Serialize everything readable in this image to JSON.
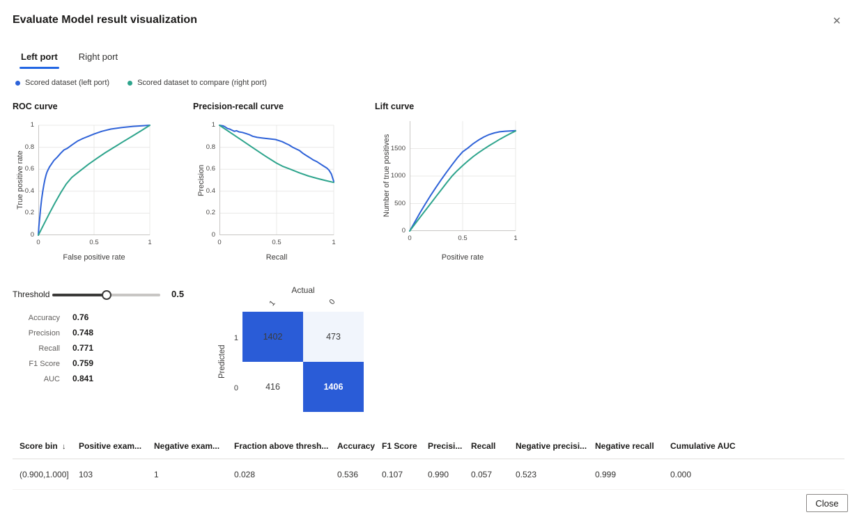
{
  "dialog": {
    "title": "Evaluate Model result visualization",
    "close_icon": "✕"
  },
  "tabs": [
    {
      "label": "Left port",
      "active": true
    },
    {
      "label": "Right port",
      "active": false
    }
  ],
  "legend": {
    "items": [
      {
        "label": "Scored dataset (left port)",
        "color": "#2b62d9"
      },
      {
        "label": "Scored dataset to compare (right port)",
        "color": "#2da48c"
      }
    ]
  },
  "colors": {
    "accent": "#2266e3",
    "curve_blue": "#2e62d8",
    "curve_green": "#2da48c",
    "matrix_blue": "#2a5cd7",
    "matrix_light": "#f1f5fc"
  },
  "chart_data": [
    {
      "type": "line",
      "title": "ROC curve",
      "xlabel": "False positive rate",
      "ylabel": "True positive rate",
      "xlim": [
        0,
        1
      ],
      "ylim": [
        0,
        1
      ],
      "xticks": [
        {
          "v": 0,
          "label": "0"
        },
        {
          "v": 0.5,
          "label": "0.5"
        },
        {
          "v": 1,
          "label": "1"
        }
      ],
      "yticks": [
        {
          "v": 0,
          "label": "0"
        },
        {
          "v": 0.2,
          "label": "0.2"
        },
        {
          "v": 0.4,
          "label": "0.4"
        },
        {
          "v": 0.6,
          "label": "0.6"
        },
        {
          "v": 0.8,
          "label": "0.8"
        },
        {
          "v": 1,
          "label": "1"
        }
      ],
      "grid": true,
      "legend_position": "top",
      "series": [
        {
          "name": "Scored dataset (left port)",
          "color": "#2e62d8",
          "points": [
            [
              0,
              0
            ],
            [
              0.005,
              0.08
            ],
            [
              0.01,
              0.13
            ],
            [
              0.02,
              0.24
            ],
            [
              0.03,
              0.33
            ],
            [
              0.04,
              0.4
            ],
            [
              0.05,
              0.46
            ],
            [
              0.06,
              0.51
            ],
            [
              0.07,
              0.55
            ],
            [
              0.08,
              0.58
            ],
            [
              0.1,
              0.62
            ],
            [
              0.12,
              0.65
            ],
            [
              0.14,
              0.68
            ],
            [
              0.17,
              0.71
            ],
            [
              0.2,
              0.745
            ],
            [
              0.23,
              0.775
            ],
            [
              0.26,
              0.79
            ],
            [
              0.3,
              0.82
            ],
            [
              0.35,
              0.855
            ],
            [
              0.4,
              0.88
            ],
            [
              0.45,
              0.9
            ],
            [
              0.5,
              0.92
            ],
            [
              0.57,
              0.945
            ],
            [
              0.65,
              0.965
            ],
            [
              0.75,
              0.98
            ],
            [
              0.85,
              0.99
            ],
            [
              1,
              1
            ]
          ]
        },
        {
          "name": "Scored dataset to compare (right port)",
          "color": "#2da48c",
          "points": [
            [
              0,
              0
            ],
            [
              0.05,
              0.1
            ],
            [
              0.1,
              0.2
            ],
            [
              0.15,
              0.295
            ],
            [
              0.2,
              0.385
            ],
            [
              0.25,
              0.465
            ],
            [
              0.3,
              0.525
            ],
            [
              0.33,
              0.55
            ],
            [
              0.38,
              0.59
            ],
            [
              0.45,
              0.645
            ],
            [
              0.52,
              0.695
            ],
            [
              0.6,
              0.75
            ],
            [
              0.68,
              0.8
            ],
            [
              0.76,
              0.85
            ],
            [
              0.85,
              0.905
            ],
            [
              0.93,
              0.955
            ],
            [
              1,
              1
            ]
          ]
        }
      ]
    },
    {
      "type": "line",
      "title": "Precision-recall curve",
      "xlabel": "Recall",
      "ylabel": "Precision",
      "xlim": [
        0,
        1
      ],
      "ylim": [
        0,
        1
      ],
      "xticks": [
        {
          "v": 0,
          "label": "0"
        },
        {
          "v": 0.5,
          "label": "0.5"
        },
        {
          "v": 1,
          "label": "1"
        }
      ],
      "yticks": [
        {
          "v": 0,
          "label": "0"
        },
        {
          "v": 0.2,
          "label": "0.2"
        },
        {
          "v": 0.4,
          "label": "0.4"
        },
        {
          "v": 0.6,
          "label": "0.6"
        },
        {
          "v": 0.8,
          "label": "0.8"
        },
        {
          "v": 1,
          "label": "1"
        }
      ],
      "grid": true,
      "legend_position": "top",
      "series": [
        {
          "name": "Scored dataset (left port)",
          "color": "#2e62d8",
          "points": [
            [
              0,
              1
            ],
            [
              0.03,
              0.995
            ],
            [
              0.05,
              0.985
            ],
            [
              0.07,
              0.97
            ],
            [
              0.09,
              0.965
            ],
            [
              0.11,
              0.955
            ],
            [
              0.13,
              0.945
            ],
            [
              0.15,
              0.95
            ],
            [
              0.17,
              0.94
            ],
            [
              0.2,
              0.935
            ],
            [
              0.23,
              0.925
            ],
            [
              0.26,
              0.915
            ],
            [
              0.29,
              0.9
            ],
            [
              0.33,
              0.89
            ],
            [
              0.37,
              0.885
            ],
            [
              0.41,
              0.88
            ],
            [
              0.45,
              0.875
            ],
            [
              0.49,
              0.87
            ],
            [
              0.52,
              0.86
            ],
            [
              0.55,
              0.85
            ],
            [
              0.58,
              0.835
            ],
            [
              0.61,
              0.82
            ],
            [
              0.64,
              0.8
            ],
            [
              0.67,
              0.785
            ],
            [
              0.7,
              0.77
            ],
            [
              0.73,
              0.745
            ],
            [
              0.76,
              0.725
            ],
            [
              0.79,
              0.705
            ],
            [
              0.82,
              0.685
            ],
            [
              0.85,
              0.67
            ],
            [
              0.88,
              0.65
            ],
            [
              0.91,
              0.63
            ],
            [
              0.94,
              0.61
            ],
            [
              0.96,
              0.59
            ],
            [
              0.98,
              0.555
            ],
            [
              0.99,
              0.52
            ],
            [
              1,
              0.49
            ]
          ]
        },
        {
          "name": "Scored dataset to compare (right port)",
          "color": "#2da48c",
          "points": [
            [
              0,
              1
            ],
            [
              0.1,
              0.93
            ],
            [
              0.2,
              0.86
            ],
            [
              0.3,
              0.79
            ],
            [
              0.4,
              0.72
            ],
            [
              0.5,
              0.655
            ],
            [
              0.55,
              0.628
            ],
            [
              0.62,
              0.6
            ],
            [
              0.7,
              0.567
            ],
            [
              0.78,
              0.538
            ],
            [
              0.86,
              0.515
            ],
            [
              0.93,
              0.497
            ],
            [
              1,
              0.48
            ]
          ]
        }
      ]
    },
    {
      "type": "line",
      "title": "Lift curve",
      "xlabel": "Positive rate",
      "ylabel": "Number of true positives",
      "xlim": [
        0,
        1
      ],
      "ylim": [
        0,
        2000
      ],
      "xticks": [
        {
          "v": 0,
          "label": "0"
        },
        {
          "v": 0.5,
          "label": "0.5"
        },
        {
          "v": 1,
          "label": "1"
        }
      ],
      "yticks": [
        {
          "v": 0,
          "label": "0"
        },
        {
          "v": 500,
          "label": "500"
        },
        {
          "v": 1000,
          "label": "1000"
        },
        {
          "v": 1500,
          "label": "1500"
        }
      ],
      "grid": true,
      "legend_position": "top",
      "series": [
        {
          "name": "Scored dataset (left port)",
          "color": "#2e62d8",
          "points": [
            [
              0,
              0
            ],
            [
              0.05,
              170
            ],
            [
              0.1,
              340
            ],
            [
              0.15,
              500
            ],
            [
              0.2,
              655
            ],
            [
              0.25,
              800
            ],
            [
              0.3,
              940
            ],
            [
              0.35,
              1075
            ],
            [
              0.4,
              1205
            ],
            [
              0.45,
              1330
            ],
            [
              0.5,
              1440
            ],
            [
              0.55,
              1510
            ],
            [
              0.6,
              1590
            ],
            [
              0.65,
              1655
            ],
            [
              0.7,
              1710
            ],
            [
              0.75,
              1755
            ],
            [
              0.8,
              1785
            ],
            [
              0.85,
              1805
            ],
            [
              0.9,
              1815
            ],
            [
              1,
              1825
            ]
          ]
        },
        {
          "name": "Scored dataset to compare (right port)",
          "color": "#2da48c",
          "points": [
            [
              0,
              0
            ],
            [
              0.05,
              128
            ],
            [
              0.1,
              255
            ],
            [
              0.15,
              380
            ],
            [
              0.2,
              505
            ],
            [
              0.25,
              630
            ],
            [
              0.3,
              755
            ],
            [
              0.35,
              880
            ],
            [
              0.4,
              1000
            ],
            [
              0.45,
              1100
            ],
            [
              0.5,
              1190
            ],
            [
              0.55,
              1275
            ],
            [
              0.6,
              1355
            ],
            [
              0.65,
              1425
            ],
            [
              0.7,
              1490
            ],
            [
              0.75,
              1552
            ],
            [
              0.8,
              1610
            ],
            [
              0.85,
              1668
            ],
            [
              0.9,
              1722
            ],
            [
              0.95,
              1772
            ],
            [
              1,
              1820
            ]
          ]
        }
      ]
    }
  ],
  "threshold": {
    "label": "Threshold",
    "value": "0.5",
    "percent": 50
  },
  "metrics": [
    {
      "label": "Accuracy",
      "value": "0.76"
    },
    {
      "label": "Precision",
      "value": "0.748"
    },
    {
      "label": "Recall",
      "value": "0.771"
    },
    {
      "label": "F1 Score",
      "value": "0.759"
    },
    {
      "label": "AUC",
      "value": "0.841"
    }
  ],
  "confusion": {
    "x_title": "Actual",
    "y_title": "Predicted",
    "col_labels": [
      "1",
      "0"
    ],
    "row_labels": [
      "1",
      "0"
    ],
    "cells": [
      {
        "value": "1402",
        "bg": "#2a5cd7",
        "text": "#3b3b3b",
        "bold": false
      },
      {
        "value": "473",
        "bg": "#f1f5fc",
        "text": "#3b3b3b",
        "bold": false
      },
      {
        "value": "416",
        "bg": "#ffffff",
        "text": "#3b3b3b",
        "bold": false
      },
      {
        "value": "1406",
        "bg": "#2a5cd7",
        "text": "#ffffff",
        "bold": true
      }
    ]
  },
  "table": {
    "sort_icon": "↓",
    "columns": [
      "Score bin",
      "Positive exam...",
      "Negative exam...",
      "Fraction above thresh...",
      "Accuracy",
      "F1 Score",
      "Precisi...",
      "Recall",
      "Negative precisi...",
      "Negative recall",
      "Cumulative AUC"
    ],
    "rows": [
      [
        "(0.900,1.000]",
        "103",
        "1",
        "0.028",
        "0.536",
        "0.107",
        "0.990",
        "0.057",
        "0.523",
        "0.999",
        "0.000"
      ]
    ]
  },
  "close_button": {
    "label": "Close"
  }
}
